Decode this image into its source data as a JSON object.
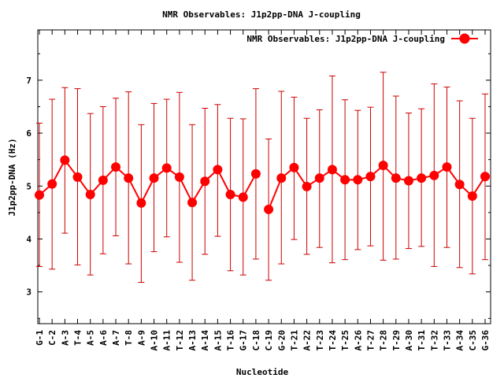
{
  "chart_data": {
    "type": "line",
    "title": "NMR Observables: J1p2pp-DNA J-coupling",
    "xlabel": "Nucleotide",
    "ylabel": "J1p2pp-DNA (Hz)",
    "ylim": [
      2.4,
      7.95
    ],
    "yticks": [
      3,
      4,
      5,
      6,
      7
    ],
    "grid": false,
    "legend": {
      "position": "top-right",
      "label": "NMR Observables: J1p2pp-DNA J-coupling"
    },
    "color": "#ff0000",
    "error_bar_color": "#cc0000",
    "categories": [
      "G-1",
      "C-2",
      "A-3",
      "T-4",
      "A-5",
      "A-6",
      "A-7",
      "T-8",
      "A-9",
      "A-10",
      "A-11",
      "T-12",
      "A-13",
      "A-14",
      "A-15",
      "T-16",
      "G-17",
      "C-18",
      "C-19",
      "G-20",
      "T-21",
      "A-22",
      "T-23",
      "T-24",
      "T-25",
      "A-26",
      "T-27",
      "T-28",
      "T-29",
      "A-30",
      "T-31",
      "T-32",
      "T-33",
      "A-34",
      "C-35",
      "G-36"
    ],
    "values": [
      4.83,
      5.04,
      5.49,
      5.17,
      4.84,
      5.11,
      5.36,
      5.15,
      4.68,
      5.15,
      5.34,
      5.17,
      4.69,
      5.09,
      5.31,
      4.84,
      4.79,
      5.23,
      4.56,
      5.15,
      5.35,
      4.99,
      5.15,
      5.31,
      5.12,
      5.12,
      5.18,
      5.39,
      5.15,
      5.1,
      5.15,
      5.2,
      5.36,
      5.03,
      4.81,
      5.18
    ],
    "err_low": [
      3.48,
      3.43,
      4.11,
      3.51,
      3.32,
      3.72,
      4.06,
      3.53,
      3.18,
      3.76,
      4.04,
      3.56,
      3.22,
      3.71,
      4.05,
      3.4,
      3.32,
      3.62,
      3.22,
      3.53,
      3.99,
      3.71,
      3.84,
      3.55,
      3.61,
      3.8,
      3.87,
      3.6,
      3.62,
      3.82,
      3.86,
      3.48,
      3.84,
      3.46,
      3.34,
      3.61
    ],
    "err_high": [
      6.19,
      6.64,
      6.86,
      6.84,
      6.37,
      6.5,
      6.66,
      6.78,
      6.16,
      6.56,
      6.64,
      6.77,
      6.16,
      6.47,
      6.54,
      6.28,
      6.27,
      6.84,
      5.89,
      6.79,
      6.68,
      6.28,
      6.44,
      7.08,
      6.63,
      6.43,
      6.49,
      7.15,
      6.7,
      6.38,
      6.46,
      6.93,
      6.87,
      6.61,
      6.28,
      6.74
    ],
    "segments": [
      [
        0,
        17
      ],
      [
        18,
        35
      ]
    ]
  }
}
